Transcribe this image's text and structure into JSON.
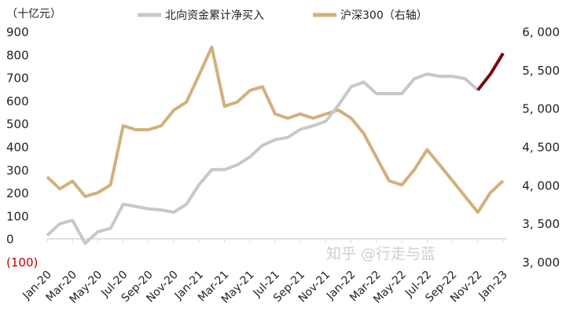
{
  "chart_data": {
    "type": "line",
    "unit_label": "（十亿元）",
    "legend": [
      {
        "name": "北向资金累计净买入",
        "color": "#c8c8c8"
      },
      {
        "name": "沪深300（右轴）",
        "color": "#d2b07c"
      }
    ],
    "legend_placement": "top",
    "x_tick_labels": [
      "Jan-20",
      "Mar-20",
      "May-20",
      "Jul-20",
      "Sep-20",
      "Nov-20",
      "Jan-21",
      "Mar-21",
      "May-21",
      "Jul-21",
      "Sep-21",
      "Nov-21",
      "Jan-22",
      "Mar-22",
      "May-22",
      "Jul-22",
      "Sep-22",
      "Nov-22",
      "Jan-23"
    ],
    "x": [
      "2020-01",
      "2020-02",
      "2020-03",
      "2020-04",
      "2020-05",
      "2020-06",
      "2020-07",
      "2020-08",
      "2020-09",
      "2020-10",
      "2020-11",
      "2020-12",
      "2021-01",
      "2021-02",
      "2021-03",
      "2021-04",
      "2021-05",
      "2021-06",
      "2021-07",
      "2021-08",
      "2021-09",
      "2021-10",
      "2021-11",
      "2021-12",
      "2022-01",
      "2022-02",
      "2022-03",
      "2022-04",
      "2022-05",
      "2022-06",
      "2022-07",
      "2022-08",
      "2022-09",
      "2022-10",
      "2022-11",
      "2022-12",
      "2023-01"
    ],
    "y_left": {
      "ylim": [
        -100,
        900
      ],
      "ticks": [
        "(100)",
        "0",
        "100",
        "200",
        "300",
        "400",
        "500",
        "600",
        "700",
        "800",
        "900"
      ],
      "negative_color": "#c00000"
    },
    "y_right": {
      "ylim": [
        3000,
        6000
      ],
      "ticks": [
        "3, 000",
        "3, 500",
        "4, 000",
        "4, 500",
        "5, 000",
        "5, 500",
        "6, 000"
      ]
    },
    "grid": false,
    "series": [
      {
        "name": "北向资金累计净买入",
        "axis": "left",
        "color": "#c8c8c8",
        "highlight_color": "#7a0a0a",
        "highlight_from": "2022-11",
        "values": [
          15,
          65,
          80,
          -20,
          30,
          45,
          150,
          140,
          130,
          125,
          115,
          150,
          235,
          300,
          300,
          320,
          355,
          405,
          430,
          440,
          475,
          490,
          510,
          580,
          660,
          680,
          630,
          630,
          630,
          695,
          715,
          705,
          705,
          695,
          645,
          715,
          805
        ]
      },
      {
        "name": "沪深300（右轴）",
        "axis": "right",
        "color": "#d2b07c",
        "values": [
          4105,
          3950,
          4050,
          3850,
          3900,
          4000,
          4770,
          4720,
          4720,
          4770,
          4975,
          5080,
          5435,
          5795,
          5025,
          5080,
          5230,
          5280,
          4925,
          4870,
          4925,
          4870,
          4925,
          4975,
          4870,
          4670,
          4360,
          4055,
          4000,
          4200,
          4460,
          4260,
          4055,
          3850,
          3645,
          3900,
          4055
        ]
      }
    ]
  },
  "watermark": "知乎 @行走与蓝"
}
